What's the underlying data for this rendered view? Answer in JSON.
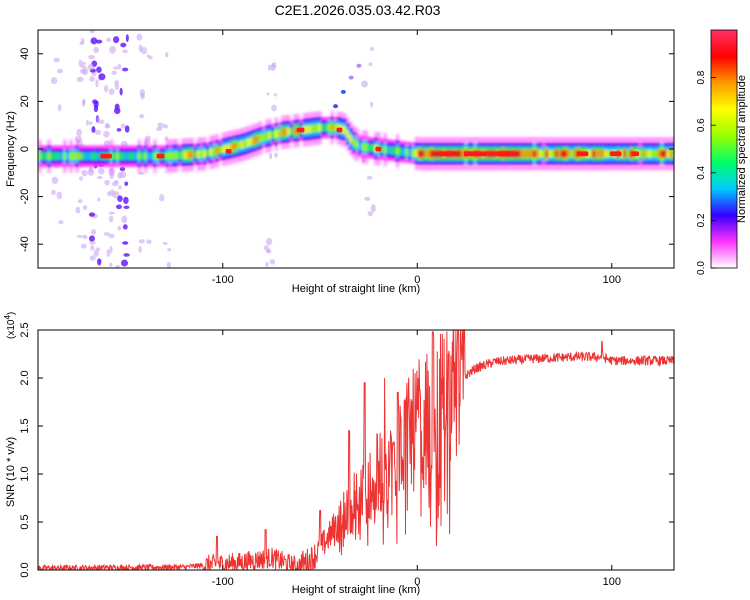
{
  "title": "C2E1.2026.035.03.42.R03",
  "chart_data": [
    {
      "type": "heatmap",
      "title": "C2E1.2026.035.03.42.R03",
      "xlabel": "Height of straight line (km)",
      "ylabel": "Frequency (Hz)",
      "xlim": [
        -195,
        132
      ],
      "ylim": [
        -50,
        50
      ],
      "xticks": [
        -100,
        0,
        100
      ],
      "yticks": [
        -40,
        -20,
        0,
        20,
        40
      ],
      "ytick_labels": [
        "-40",
        "-20",
        "0",
        "20",
        "40"
      ],
      "colorbar": {
        "label": "Normalized spectral amplitude",
        "range": [
          0,
          1
        ],
        "ticks": [
          0.0,
          0.2,
          0.4,
          0.6,
          0.8
        ],
        "tick_labels": [
          "0.0",
          "0.2",
          "0.4",
          "0.6",
          "0.8"
        ],
        "colors": [
          "#ffffff",
          "#ff33ff",
          "#3300ff",
          "#00ccff",
          "#00ff66",
          "#99ff00",
          "#ffff00",
          "#ff9900",
          "#ff0000",
          "#ff3366"
        ]
      },
      "ridge_frequency_hz": {
        "x": [
          -195,
          -170,
          -150,
          -130,
          -110,
          -100,
          -90,
          -80,
          -70,
          -60,
          -50,
          -42,
          -38,
          -34,
          -30,
          -20,
          -10,
          0,
          20,
          60,
          100,
          132
        ],
        "y": [
          -3,
          -3,
          -3,
          -3,
          -2,
          0,
          2,
          5,
          7,
          8,
          9,
          9,
          8,
          3,
          1,
          0,
          -1,
          -2,
          -2,
          -2,
          -2,
          -2
        ]
      }
    },
    {
      "type": "line",
      "xlabel": "Height of straight line (km)",
      "ylabel": "SNR (10 * v/v)",
      "multiplier": "(x10",
      "multiplier_exp": "4",
      "xlim": [
        -195,
        132
      ],
      "ylim": [
        0,
        2.5
      ],
      "xticks": [
        -100,
        0,
        100
      ],
      "yticks": [
        0.0,
        0.5,
        1.0,
        1.5,
        2.0,
        2.5
      ],
      "ytick_labels": [
        "0.0",
        "0.5",
        "1.0",
        "1.5",
        "2.0",
        "2.5"
      ],
      "series_color": "#ee3333",
      "trend": {
        "x": [
          -195,
          -120,
          -90,
          -75,
          -62,
          -55,
          -50,
          -40,
          -30,
          -20,
          -10,
          0,
          10,
          20,
          30,
          40,
          60,
          80,
          95,
          100,
          120,
          132
        ],
        "y": [
          0.02,
          0.03,
          0.08,
          0.13,
          0.03,
          0.1,
          0.22,
          0.5,
          0.8,
          1.0,
          1.25,
          1.5,
          1.7,
          1.95,
          2.1,
          2.17,
          2.2,
          2.22,
          2.22,
          2.18,
          2.18,
          2.18
        ]
      },
      "spikes": [
        {
          "x": -103,
          "y": 0.35
        },
        {
          "x": -78,
          "y": 0.42
        },
        {
          "x": -50,
          "y": 0.62
        },
        {
          "x": -35,
          "y": 1.45
        },
        {
          "x": -27,
          "y": 1.95
        },
        {
          "x": -17,
          "y": 2.0
        },
        {
          "x": -10,
          "y": 1.85
        },
        {
          "x": 2,
          "y": 1.45
        },
        {
          "x": 8,
          "y": 2.48
        },
        {
          "x": 10,
          "y": 0.48
        },
        {
          "x": 16,
          "y": 2.25
        },
        {
          "x": 95,
          "y": 2.38
        }
      ]
    }
  ]
}
